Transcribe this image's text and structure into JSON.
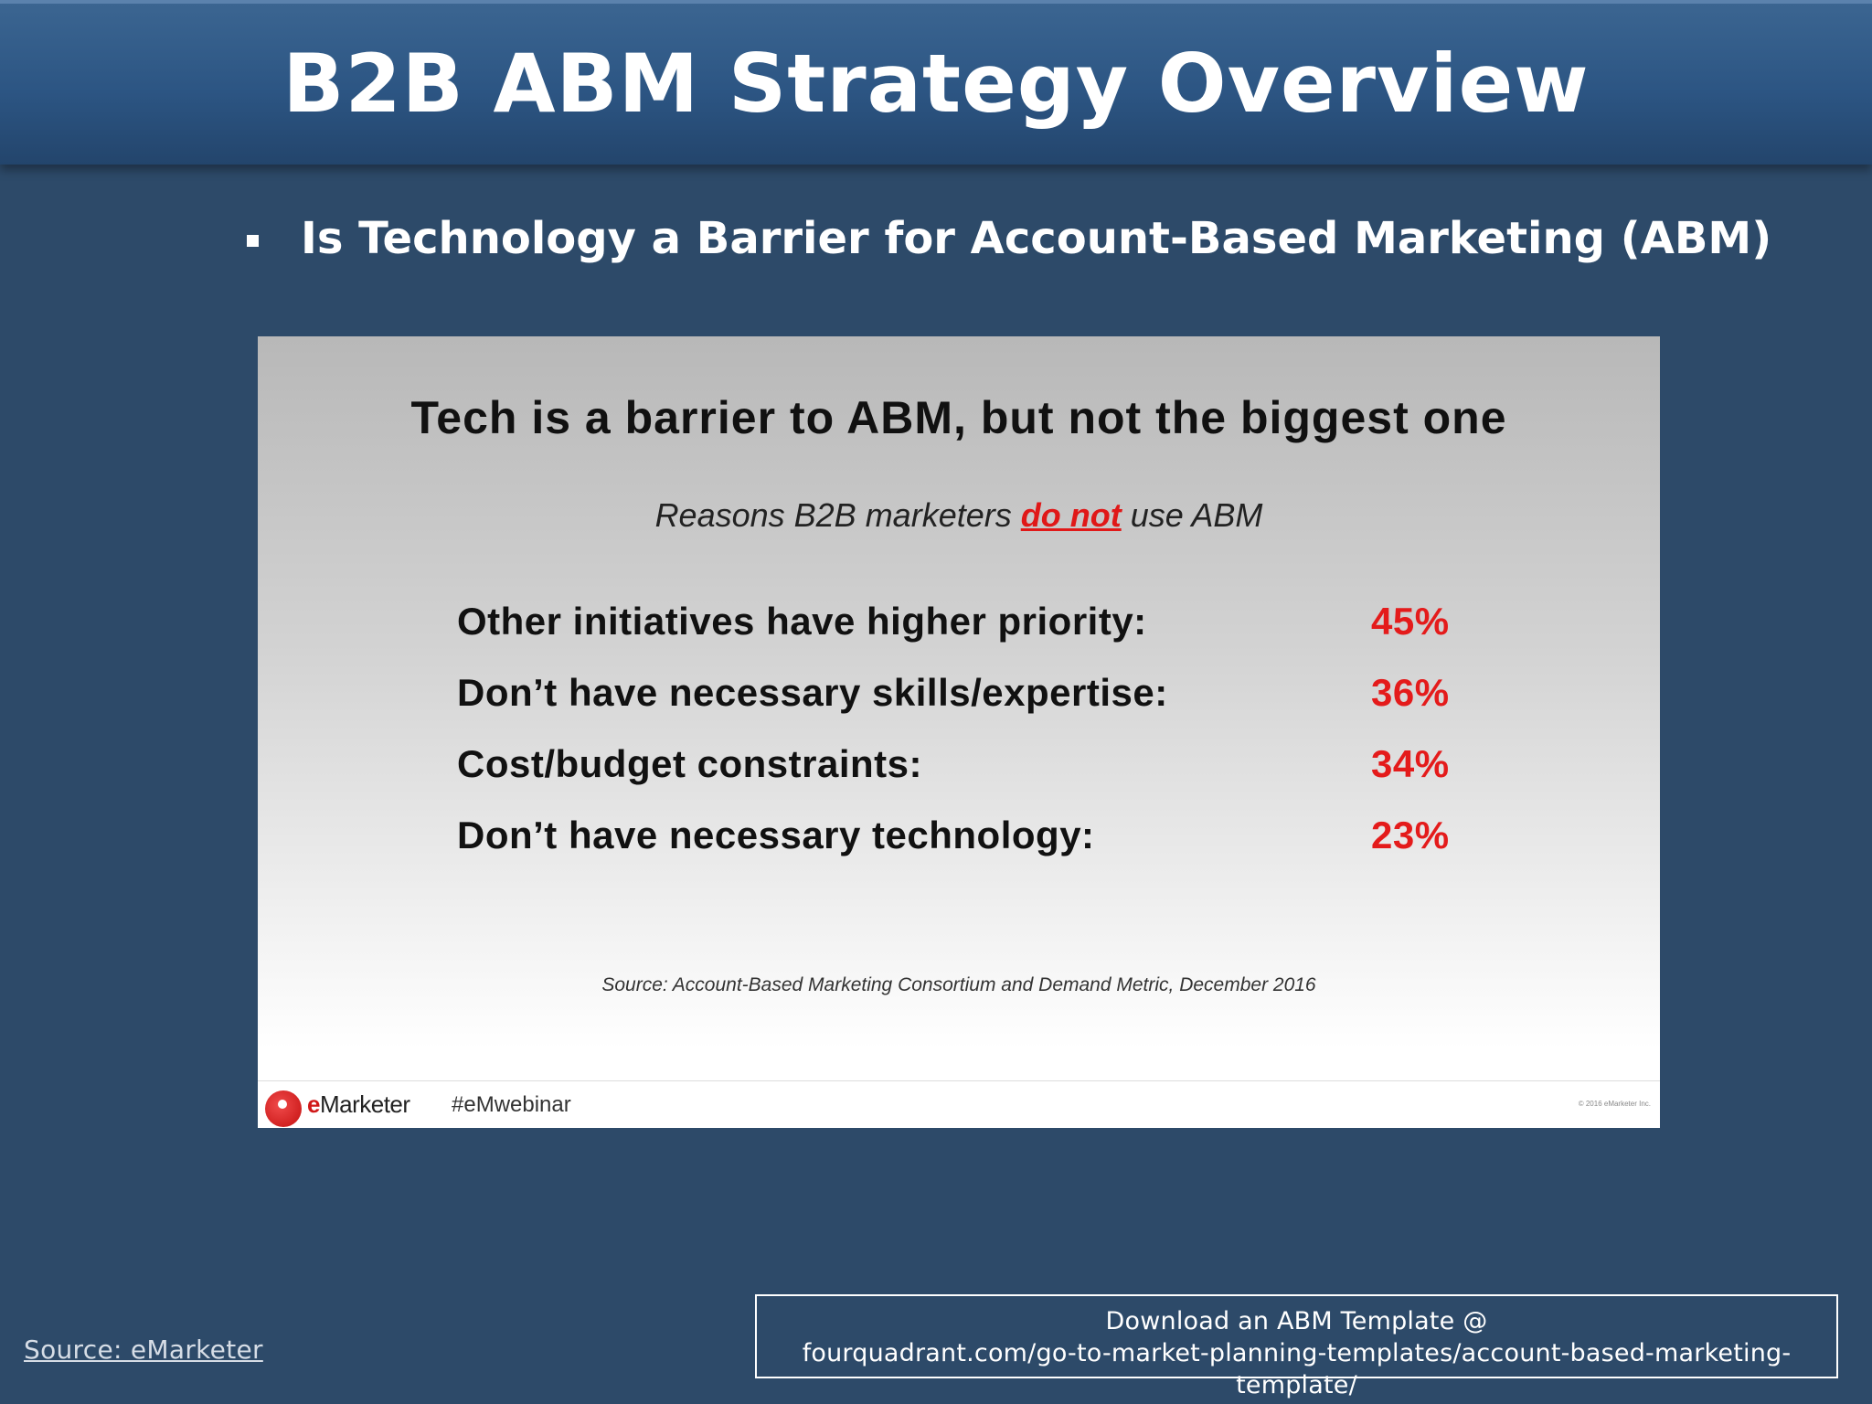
{
  "slide": {
    "title": "B2B ABM Strategy Overview",
    "bullet": "Is Technology a Barrier for Account-Based Marketing (ABM)"
  },
  "embedded_slide": {
    "title": "Tech is a barrier to ABM, but not the biggest one",
    "subtitle_before": "Reasons B2B marketers ",
    "subtitle_emphasis": "do not",
    "subtitle_after": " use ABM",
    "reasons": [
      {
        "label": "Other initiatives have higher priority:",
        "value": "45%"
      },
      {
        "label": "Don’t have necessary skills/expertise:",
        "value": "36%"
      },
      {
        "label": "Cost/budget constraints:",
        "value": "34%"
      },
      {
        "label": "Don’t have necessary technology:",
        "value": "23%"
      }
    ],
    "source": "Source: Account-Based Marketing Consortium and Demand Metric, December 2016",
    "footer": {
      "brand_e": "e",
      "brand_rest": "Marketer",
      "hashtag": "#eMwebinar",
      "copyright": "© 2016 eMarketer Inc."
    }
  },
  "footer": {
    "source_link": "Source: eMarketer",
    "download_line1": "Download an ABM Template @",
    "download_line2": "fourquadrant.com/go-to-market-planning-templates/account-based-marketing-template/"
  },
  "colors": {
    "background": "#2d4a69",
    "header": "#2c5583",
    "accent_red": "#e41b1b"
  }
}
